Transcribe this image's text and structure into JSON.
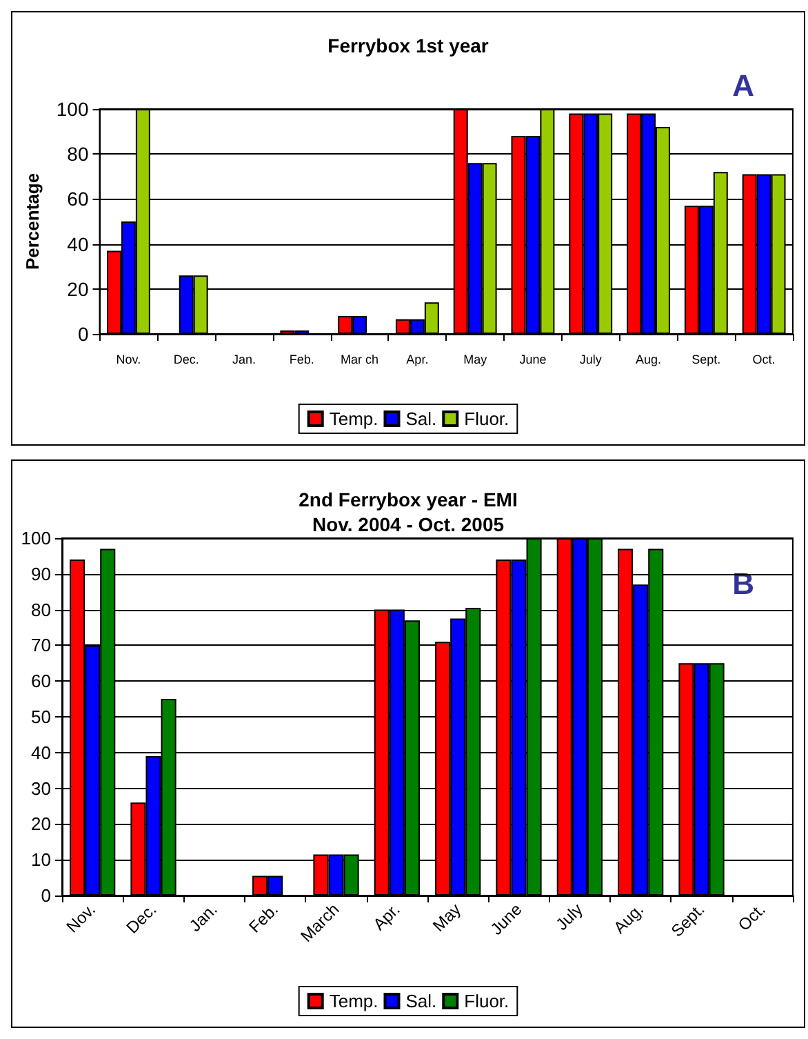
{
  "chart_data": [
    {
      "type": "bar",
      "title": "Ferrybox 1st year",
      "ylabel": "Percentage",
      "annotations": [
        "A"
      ],
      "categories": [
        "Nov.",
        "Dec.",
        "Jan.",
        "Feb.",
        "Mar ch",
        "Apr.",
        "May",
        "June",
        "July",
        "Aug.",
        "Sept.",
        "Oct."
      ],
      "series": [
        {
          "name": "Temp.",
          "color": "#ff0000",
          "values": [
            37,
            null,
            null,
            1.5,
            8,
            6.5,
            100,
            88,
            98,
            98,
            57,
            71
          ]
        },
        {
          "name": "Sal.",
          "color": "#0000ff",
          "values": [
            50,
            26,
            null,
            1.5,
            8,
            6.5,
            76,
            88,
            98,
            98,
            57,
            71
          ]
        },
        {
          "name": "Fluor.",
          "color": "#99cc00",
          "values": [
            100,
            26,
            null,
            null,
            null,
            14,
            76,
            100,
            98,
            92,
            72,
            71
          ]
        }
      ],
      "ylim": [
        0,
        100
      ],
      "yticks": [
        0,
        20,
        40,
        60,
        80,
        100
      ],
      "grid": "y",
      "legend": "bottom"
    },
    {
      "type": "bar",
      "title": "2nd Ferrybox year - EMI\nNov. 2004 - Oct. 2005",
      "annotations": [
        "B"
      ],
      "categories": [
        "Nov.",
        "Dec.",
        "Jan.",
        "Feb.",
        "March",
        "Apr.",
        "May",
        "June",
        "July",
        "Aug.",
        "Sept.",
        "Oct."
      ],
      "series": [
        {
          "name": "Temp.",
          "color": "#ff0000",
          "values": [
            94,
            26,
            null,
            5.5,
            11.5,
            80,
            71,
            94,
            100,
            97,
            65,
            null
          ]
        },
        {
          "name": "Sal.",
          "color": "#0000ff",
          "values": [
            70,
            39,
            null,
            5.5,
            11.5,
            80,
            77.5,
            94,
            100,
            87,
            65,
            null
          ]
        },
        {
          "name": "Fluor.",
          "color": "#008000",
          "values": [
            97,
            55,
            null,
            null,
            11.5,
            77,
            80.5,
            100,
            100,
            97,
            65,
            null
          ]
        }
      ],
      "ylim": [
        0,
        100
      ],
      "yticks": [
        0,
        10,
        20,
        30,
        40,
        50,
        60,
        70,
        80,
        90,
        100
      ],
      "grid": "y",
      "legend": "bottom"
    }
  ]
}
